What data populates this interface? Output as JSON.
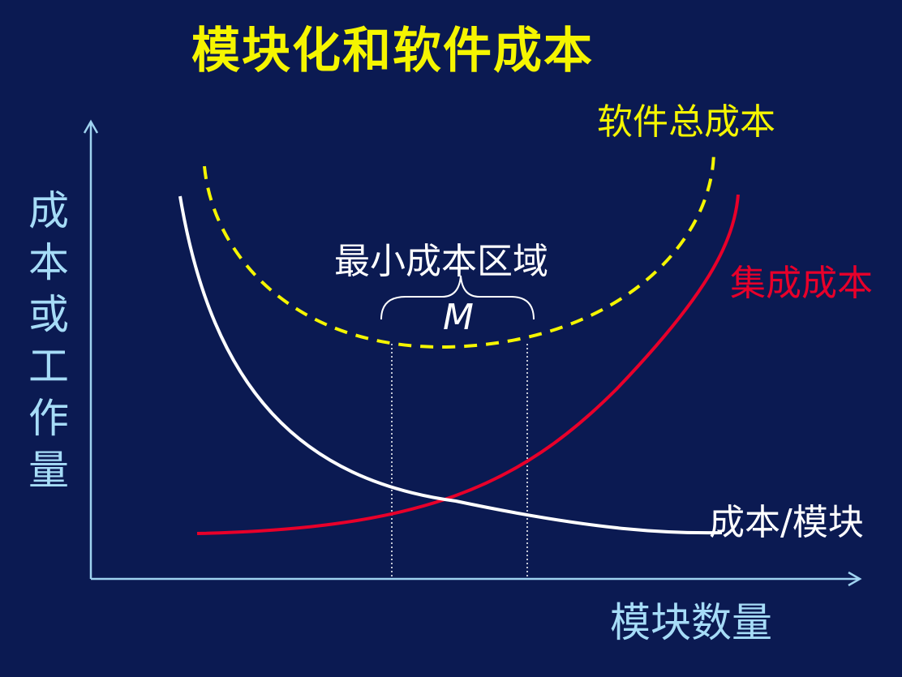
{
  "title": "模块化和软件成本",
  "y_axis_label": [
    "成",
    "本",
    "或",
    "工",
    "作",
    "量"
  ],
  "x_axis_label": "模块数量",
  "curves": {
    "total_cost": {
      "label": "软件总成本",
      "color": "#f5f500",
      "style": "dashed"
    },
    "integration_cost": {
      "label": "集成成本",
      "color": "#e8002a",
      "style": "solid"
    },
    "cost_per_module": {
      "label": "成本/模块",
      "color": "#ffffff",
      "style": "solid"
    }
  },
  "region": {
    "label": "最小成本区域",
    "symbol": "M"
  },
  "colors": {
    "background": "#0b1a52",
    "title": "#f5f500",
    "axis": "#9fd3f0",
    "axis_label": "#a6dcf7",
    "text": "#ffffff"
  }
}
